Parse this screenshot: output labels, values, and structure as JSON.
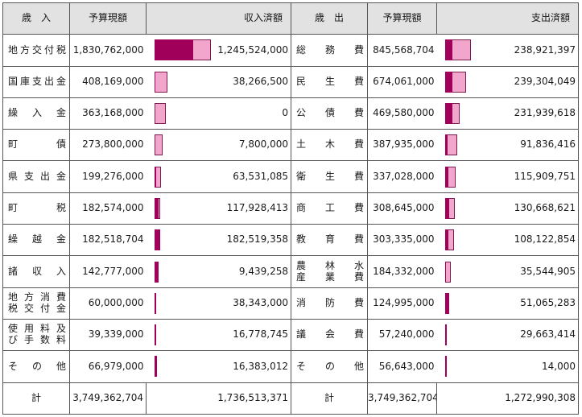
{
  "headers": {
    "revenue": "歳　入",
    "budget": "予算現額",
    "revenue_actual": "収入済額",
    "expenditure": "歳　出",
    "expenditure_budget": "予算現額",
    "expenditure_actual": "支出済額"
  },
  "colors": {
    "budget_bar": "#f2a6cc",
    "actual_bar": "#a0005a"
  },
  "rows": [
    {
      "rev_label": "地方交付税",
      "rev_budget": "1,830,762,000",
      "rev_budget_v": 1830762000,
      "rev_actual": "1,245,524,000",
      "rev_actual_v": 1245524000,
      "exp_label": "総務費",
      "exp_budget": "845,568,704",
      "exp_budget_v": 845568704,
      "exp_actual": "238,921,397",
      "exp_actual_v": 238921397
    },
    {
      "rev_label": "国庫支出金",
      "rev_budget": "408,169,000",
      "rev_budget_v": 408169000,
      "rev_actual": "38,266,500",
      "rev_actual_v": 38266500,
      "exp_label": "民生費",
      "exp_budget": "674,061,000",
      "exp_budget_v": 674061000,
      "exp_actual": "239,304,049",
      "exp_actual_v": 239304049
    },
    {
      "rev_label": "繰入金",
      "rev_budget": "363,168,000",
      "rev_budget_v": 363168000,
      "rev_actual": "0",
      "rev_actual_v": 0,
      "exp_label": "公債費",
      "exp_budget": "469,580,000",
      "exp_budget_v": 469580000,
      "exp_actual": "231,939,618",
      "exp_actual_v": 231939618
    },
    {
      "rev_label": "町債",
      "rev_budget": "273,800,000",
      "rev_budget_v": 273800000,
      "rev_actual": "7,800,000",
      "rev_actual_v": 7800000,
      "exp_label": "土木費",
      "exp_budget": "387,935,000",
      "exp_budget_v": 387935000,
      "exp_actual": "91,836,416",
      "exp_actual_v": 91836416
    },
    {
      "rev_label": "県支出金",
      "rev_budget": "199,276,000",
      "rev_budget_v": 199276000,
      "rev_actual": "63,531,085",
      "rev_actual_v": 63531085,
      "exp_label": "衛生費",
      "exp_budget": "337,028,000",
      "exp_budget_v": 337028000,
      "exp_actual": "115,909,751",
      "exp_actual_v": 115909751
    },
    {
      "rev_label": "町税",
      "rev_budget": "182,574,000",
      "rev_budget_v": 182574000,
      "rev_actual": "117,928,413",
      "rev_actual_v": 117928413,
      "exp_label": "商工費",
      "exp_budget": "308,645,000",
      "exp_budget_v": 308645000,
      "exp_actual": "130,668,621",
      "exp_actual_v": 130668621
    },
    {
      "rev_label": "繰越金",
      "rev_budget": "182,518,704",
      "rev_budget_v": 182518704,
      "rev_actual": "182,519,358",
      "rev_actual_v": 182519358,
      "exp_label": "教育費",
      "exp_budget": "303,335,000",
      "exp_budget_v": 303335000,
      "exp_actual": "108,122,854",
      "exp_actual_v": 108122854
    },
    {
      "rev_label": "諸収入",
      "rev_budget": "142,777,000",
      "rev_budget_v": 142777000,
      "rev_actual": "9,439,258",
      "rev_actual_v": 9439258,
      "exp_label_line1": "農林水",
      "exp_label_line2": "産業費",
      "exp_budget": "184,332,000",
      "exp_budget_v": 184332000,
      "exp_actual": "35,544,905",
      "exp_actual_v": 35544905
    },
    {
      "rev_label_line1": "地方消費",
      "rev_label_line2": "税交付金",
      "rev_budget": "60,000,000",
      "rev_budget_v": 60000000,
      "rev_actual": "38,343,000",
      "rev_actual_v": 38343000,
      "exp_label": "消防費",
      "exp_budget": "124,995,000",
      "exp_budget_v": 124995000,
      "exp_actual": "51,065,283",
      "exp_actual_v": 51065283
    },
    {
      "rev_label_line1": "使用料及",
      "rev_label_line2": "び手数料",
      "rev_budget": "39,339,000",
      "rev_budget_v": 39339000,
      "rev_actual": "16,778,745",
      "rev_actual_v": 16778745,
      "exp_label": "議会費",
      "exp_budget": "57,240,000",
      "exp_budget_v": 57240000,
      "exp_actual": "29,663,414",
      "exp_actual_v": 29663414
    },
    {
      "rev_label": "その他",
      "rev_budget": "66,979,000",
      "rev_budget_v": 66979000,
      "rev_actual": "16,383,012",
      "rev_actual_v": 16383012,
      "exp_label": "その他",
      "exp_budget": "56,643,000",
      "exp_budget_v": 56643000,
      "exp_actual": "14,000",
      "exp_actual_v": 14000
    }
  ],
  "total": {
    "label": "計",
    "rev_budget": "3,749,362,704",
    "rev_actual": "1,736,513,371",
    "exp_label": "計",
    "exp_budget": "3,749,362,704",
    "exp_actual": "1,272,990,308"
  }
}
